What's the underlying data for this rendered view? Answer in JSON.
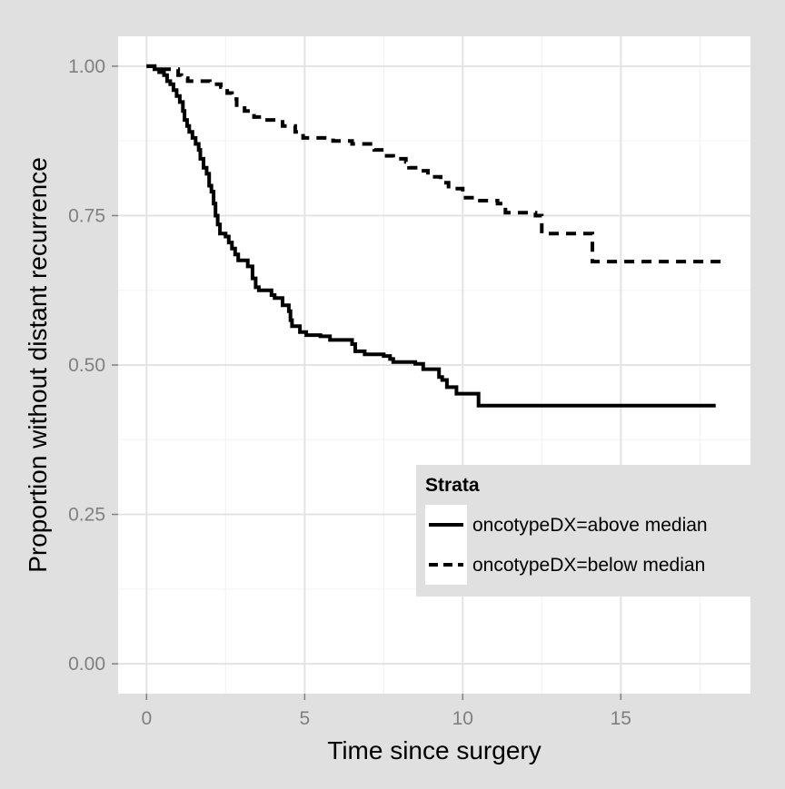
{
  "chart_data": {
    "type": "line",
    "subtype": "kaplan-meier step",
    "xlabel": "Time since surgery",
    "ylabel": "Proportion without distant recurrence",
    "xlim": [
      -0.9,
      19.1
    ],
    "ylim": [
      -0.05,
      1.05
    ],
    "xticks": [
      0,
      5,
      10,
      15
    ],
    "xtick_labels": [
      "0",
      "5",
      "10",
      "15"
    ],
    "yticks": [
      0,
      0.25,
      0.5,
      0.75,
      1.0
    ],
    "ytick_labels": [
      "0.00",
      "0.25",
      "0.50",
      "0.75",
      "1.00"
    ],
    "grid": true,
    "legend_position": "right-inset",
    "legend_title": "Strata",
    "series": [
      {
        "name": "oncotypeDX=above median",
        "linestyle": "solid",
        "color": "#000000",
        "points": [
          [
            0,
            1.0
          ],
          [
            0.25,
            0.995
          ],
          [
            0.4,
            0.99
          ],
          [
            0.55,
            0.985
          ],
          [
            0.65,
            0.975
          ],
          [
            0.75,
            0.97
          ],
          [
            0.85,
            0.96
          ],
          [
            0.95,
            0.95
          ],
          [
            1.05,
            0.94
          ],
          [
            1.15,
            0.925
          ],
          [
            1.2,
            0.91
          ],
          [
            1.28,
            0.9
          ],
          [
            1.35,
            0.89
          ],
          [
            1.45,
            0.88
          ],
          [
            1.55,
            0.87
          ],
          [
            1.65,
            0.86
          ],
          [
            1.7,
            0.845
          ],
          [
            1.8,
            0.83
          ],
          [
            1.9,
            0.82
          ],
          [
            1.98,
            0.8
          ],
          [
            2.05,
            0.79
          ],
          [
            2.12,
            0.77
          ],
          [
            2.18,
            0.75
          ],
          [
            2.25,
            0.735
          ],
          [
            2.32,
            0.72
          ],
          [
            2.5,
            0.715
          ],
          [
            2.6,
            0.705
          ],
          [
            2.7,
            0.695
          ],
          [
            2.8,
            0.685
          ],
          [
            2.9,
            0.675
          ],
          [
            3.2,
            0.665
          ],
          [
            3.35,
            0.645
          ],
          [
            3.45,
            0.63
          ],
          [
            3.55,
            0.625
          ],
          [
            3.95,
            0.617
          ],
          [
            4.05,
            0.612
          ],
          [
            4.3,
            0.6
          ],
          [
            4.5,
            0.59
          ],
          [
            4.55,
            0.575
          ],
          [
            4.6,
            0.565
          ],
          [
            4.85,
            0.555
          ],
          [
            5.05,
            0.55
          ],
          [
            5.5,
            0.548
          ],
          [
            5.8,
            0.542
          ],
          [
            6.5,
            0.535
          ],
          [
            6.6,
            0.523
          ],
          [
            6.9,
            0.518
          ],
          [
            7.5,
            0.515
          ],
          [
            7.7,
            0.51
          ],
          [
            7.8,
            0.505
          ],
          [
            8.5,
            0.502
          ],
          [
            8.75,
            0.493
          ],
          [
            9.25,
            0.48
          ],
          [
            9.35,
            0.475
          ],
          [
            9.5,
            0.463
          ],
          [
            9.8,
            0.452
          ],
          [
            10.5,
            0.432
          ],
          [
            18.0,
            0.432
          ]
        ]
      },
      {
        "name": "oncotypeDX=below median",
        "linestyle": "dashed",
        "color": "#000000",
        "points": [
          [
            0,
            1.0
          ],
          [
            0.4,
            0.995
          ],
          [
            1.0,
            0.985
          ],
          [
            1.1,
            0.98
          ],
          [
            1.3,
            0.975
          ],
          [
            2.0,
            0.97
          ],
          [
            2.35,
            0.965
          ],
          [
            2.55,
            0.955
          ],
          [
            2.7,
            0.945
          ],
          [
            2.85,
            0.935
          ],
          [
            3.1,
            0.925
          ],
          [
            3.4,
            0.915
          ],
          [
            3.75,
            0.91
          ],
          [
            4.3,
            0.9
          ],
          [
            4.7,
            0.89
          ],
          [
            4.95,
            0.88
          ],
          [
            5.9,
            0.875
          ],
          [
            6.5,
            0.87
          ],
          [
            7.2,
            0.86
          ],
          [
            7.5,
            0.85
          ],
          [
            7.8,
            0.845
          ],
          [
            8.2,
            0.84
          ],
          [
            8.3,
            0.83
          ],
          [
            8.6,
            0.825
          ],
          [
            8.9,
            0.815
          ],
          [
            9.3,
            0.805
          ],
          [
            9.55,
            0.795
          ],
          [
            10.0,
            0.78
          ],
          [
            10.45,
            0.775
          ],
          [
            11.1,
            0.77
          ],
          [
            11.35,
            0.755
          ],
          [
            12.3,
            0.75
          ],
          [
            12.5,
            0.72
          ],
          [
            13.8,
            0.72
          ],
          [
            14.1,
            0.673
          ],
          [
            18.3,
            0.673
          ]
        ]
      }
    ]
  }
}
